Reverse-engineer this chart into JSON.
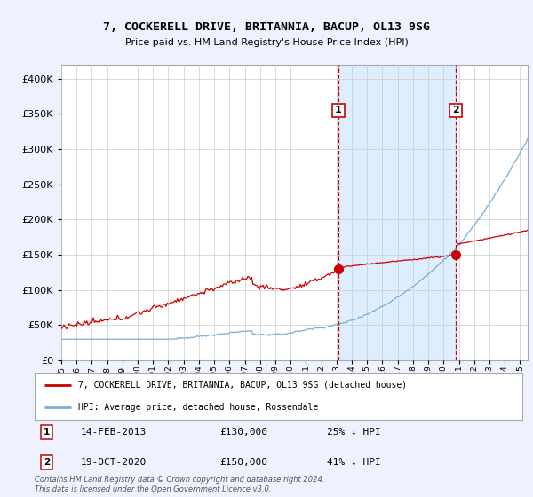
{
  "title": "7, COCKERELL DRIVE, BRITANNIA, BACUP, OL13 9SG",
  "subtitle": "Price paid vs. HM Land Registry's House Price Index (HPI)",
  "hpi_label": "HPI: Average price, detached house, Rossendale",
  "property_label": "7, COCKERELL DRIVE, BRITANNIA, BACUP, OL13 9SG (detached house)",
  "hpi_color": "#7aadd4",
  "property_color": "#cc0000",
  "vline_color": "#cc0000",
  "shade_color": "#ddeeff",
  "ylim": [
    0,
    420000
  ],
  "yticks": [
    0,
    50000,
    100000,
    150000,
    200000,
    250000,
    300000,
    350000,
    400000
  ],
  "event1": {
    "date_num": 2013.12,
    "price": 130000,
    "label": "1",
    "text": "14-FEB-2013",
    "amount": "£130,000",
    "pct": "25% ↓ HPI"
  },
  "event2": {
    "date_num": 2020.8,
    "price": 150000,
    "label": "2",
    "text": "19-OCT-2020",
    "amount": "£150,000",
    "pct": "41% ↓ HPI"
  },
  "copyright": "Contains HM Land Registry data © Crown copyright and database right 2024.\nThis data is licensed under the Open Government Licence v3.0.",
  "background_color": "#eef2ff",
  "plot_bg_color": "#ffffff",
  "grid_color": "#cccccc",
  "legend_border_color": "#aaaaaa"
}
